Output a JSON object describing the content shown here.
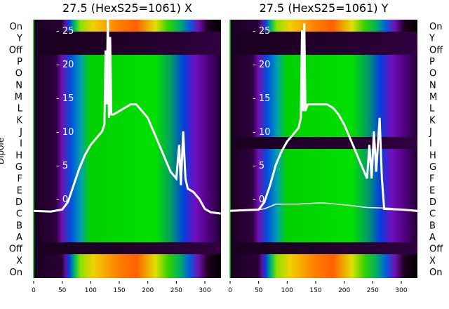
{
  "chart_data": [
    {
      "type": "heatmap",
      "title": "27.5 (HexS25=1061) X",
      "ylabel": "Dipole",
      "x_ticks": [
        0,
        50,
        100,
        150,
        200,
        250,
        300
      ],
      "xlim": [
        0,
        328
      ],
      "y_ticks": [
        0,
        5,
        10,
        15,
        20,
        25
      ],
      "ylim": [
        -11,
        27.5
      ],
      "row_labels": [
        "On",
        "Y",
        "Off",
        "P",
        "O",
        "N",
        "M",
        "L",
        "K",
        "J",
        "I",
        "H",
        "G",
        "F",
        "E",
        "D",
        "C",
        "B",
        "A",
        "Off",
        "X",
        "On"
      ],
      "curve": [
        [
          0,
          -1.8
        ],
        [
          30,
          -1.9
        ],
        [
          50,
          -1.6
        ],
        [
          60,
          -0.5
        ],
        [
          70,
          2
        ],
        [
          80,
          4.5
        ],
        [
          90,
          6.5
        ],
        [
          100,
          8
        ],
        [
          110,
          9
        ],
        [
          120,
          10
        ],
        [
          124,
          11
        ],
        [
          126,
          22
        ],
        [
          128,
          14
        ],
        [
          130,
          27.5
        ],
        [
          132,
          12
        ],
        [
          134,
          24
        ],
        [
          136,
          12.5
        ],
        [
          140,
          12.5
        ],
        [
          150,
          13
        ],
        [
          160,
          13.5
        ],
        [
          170,
          14
        ],
        [
          180,
          14
        ],
        [
          190,
          13
        ],
        [
          200,
          12
        ],
        [
          210,
          10
        ],
        [
          220,
          8
        ],
        [
          230,
          6
        ],
        [
          240,
          4
        ],
        [
          250,
          3
        ],
        [
          255,
          8
        ],
        [
          258,
          2
        ],
        [
          262,
          10
        ],
        [
          266,
          3
        ],
        [
          270,
          1.5
        ],
        [
          280,
          1
        ],
        [
          290,
          0
        ],
        [
          300,
          -1.5
        ],
        [
          310,
          -2
        ],
        [
          328,
          -2.2
        ]
      ]
    },
    {
      "type": "heatmap",
      "title": "27.5 (HexS25=1061) Y",
      "x_ticks": [
        0,
        50,
        100,
        150,
        200,
        250,
        300
      ],
      "xlim": [
        0,
        328
      ],
      "y_ticks": [
        0,
        5,
        10,
        15,
        20,
        25
      ],
      "ylim": [
        -11,
        27.5
      ],
      "row_labels": [
        "On",
        "Y",
        "Off",
        "P",
        "O",
        "N",
        "M",
        "L",
        "K",
        "J",
        "I",
        "H",
        "G",
        "F",
        "E",
        "D",
        "C",
        "B",
        "A",
        "Off",
        "X",
        "On"
      ],
      "curve": [
        [
          0,
          -1.8
        ],
        [
          50,
          -1.6
        ],
        [
          60,
          -0.5
        ],
        [
          70,
          2
        ],
        [
          80,
          5
        ],
        [
          90,
          7
        ],
        [
          100,
          8.5
        ],
        [
          110,
          9.5
        ],
        [
          120,
          10.5
        ],
        [
          124,
          12
        ],
        [
          126,
          25
        ],
        [
          128,
          13
        ],
        [
          130,
          26
        ],
        [
          132,
          13
        ],
        [
          136,
          14
        ],
        [
          140,
          14
        ],
        [
          150,
          14
        ],
        [
          160,
          14
        ],
        [
          170,
          14
        ],
        [
          180,
          13.5
        ],
        [
          190,
          12.5
        ],
        [
          200,
          11
        ],
        [
          210,
          9
        ],
        [
          220,
          7
        ],
        [
          230,
          5
        ],
        [
          240,
          3
        ],
        [
          244,
          8
        ],
        [
          248,
          3
        ],
        [
          252,
          10
        ],
        [
          256,
          4
        ],
        [
          262,
          12
        ],
        [
          266,
          3
        ],
        [
          270,
          -1.5
        ],
        [
          300,
          -1.6
        ],
        [
          328,
          -1.8
        ]
      ],
      "curve2": [
        [
          0,
          -1.8
        ],
        [
          40,
          -1.7
        ],
        [
          60,
          -1.5
        ],
        [
          80,
          -0.8
        ],
        [
          120,
          -0.8
        ],
        [
          160,
          -0.6
        ],
        [
          200,
          -0.9
        ],
        [
          240,
          -1.3
        ],
        [
          280,
          -1.4
        ],
        [
          328,
          -1.9
        ]
      ]
    }
  ]
}
